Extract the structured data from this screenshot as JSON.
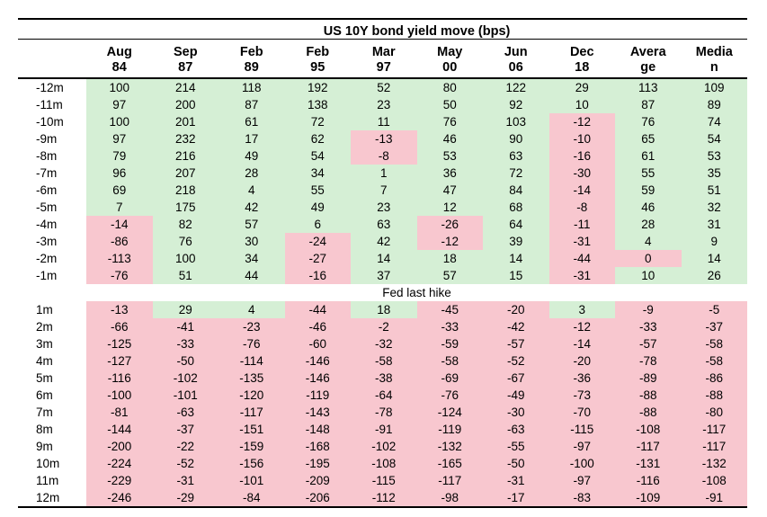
{
  "title": "US 10Y bond yield move (bps)",
  "columns": [
    [
      "Aug",
      "84"
    ],
    [
      "Sep",
      "87"
    ],
    [
      "Feb",
      "89"
    ],
    [
      "Feb",
      "95"
    ],
    [
      "Mar",
      "97"
    ],
    [
      "May",
      "00"
    ],
    [
      "Jun",
      "06"
    ],
    [
      "Dec",
      "18"
    ],
    [
      "Avera",
      "ge"
    ],
    [
      "Media",
      "n"
    ]
  ],
  "separator_label": "Fed last hike",
  "before_hike": [
    {
      "label": "-12m",
      "values": [
        "100",
        "214",
        "118",
        "192",
        "52",
        "80",
        "122",
        "29",
        "113",
        "109"
      ]
    },
    {
      "label": "-11m",
      "values": [
        "97",
        "200",
        "87",
        "138",
        "23",
        "50",
        "92",
        "10",
        "87",
        "89"
      ]
    },
    {
      "label": "-10m",
      "values": [
        "100",
        "201",
        "61",
        "72",
        "11",
        "76",
        "103",
        "-12",
        "76",
        "74"
      ]
    },
    {
      "label": "-9m",
      "values": [
        "97",
        "232",
        "17",
        "62",
        "-13",
        "46",
        "90",
        "-10",
        "65",
        "54"
      ]
    },
    {
      "label": "-8m",
      "values": [
        "79",
        "216",
        "49",
        "54",
        "-8",
        "53",
        "63",
        "-16",
        "61",
        "53"
      ]
    },
    {
      "label": "-7m",
      "values": [
        "96",
        "207",
        "28",
        "34",
        "1",
        "36",
        "72",
        "-30",
        "55",
        "35"
      ]
    },
    {
      "label": "-6m",
      "values": [
        "69",
        "218",
        "4",
        "55",
        "7",
        "47",
        "84",
        "-14",
        "59",
        "51"
      ]
    },
    {
      "label": "-5m",
      "values": [
        "7",
        "175",
        "42",
        "49",
        "23",
        "12",
        "68",
        "-8",
        "46",
        "32"
      ]
    },
    {
      "label": "-4m",
      "values": [
        "-14",
        "82",
        "57",
        "6",
        "63",
        "-26",
        "64",
        "-11",
        "28",
        "31"
      ]
    },
    {
      "label": "-3m",
      "values": [
        "-86",
        "76",
        "30",
        "-24",
        "42",
        "-12",
        "39",
        "-31",
        "4",
        "9"
      ]
    },
    {
      "label": "-2m",
      "values": [
        "-113",
        "100",
        "34",
        "-27",
        "14",
        "18",
        "14",
        "-44",
        "0",
        "14"
      ]
    },
    {
      "label": "-1m",
      "values": [
        "-76",
        "51",
        "44",
        "-16",
        "37",
        "57",
        "15",
        "-31",
        "10",
        "26"
      ]
    }
  ],
  "after_hike": [
    {
      "label": "1m",
      "values": [
        "-13",
        "29",
        "4",
        "-44",
        "18",
        "-45",
        "-20",
        "3",
        "-9",
        "-5"
      ]
    },
    {
      "label": "2m",
      "values": [
        "-66",
        "-41",
        "-23",
        "-46",
        "-2",
        "-33",
        "-42",
        "-12",
        "-33",
        "-37"
      ]
    },
    {
      "label": "3m",
      "values": [
        "-125",
        "-33",
        "-76",
        "-60",
        "-32",
        "-59",
        "-57",
        "-14",
        "-57",
        "-58"
      ]
    },
    {
      "label": "4m",
      "values": [
        "-127",
        "-50",
        "-114",
        "-146",
        "-58",
        "-58",
        "-52",
        "-20",
        "-78",
        "-58"
      ]
    },
    {
      "label": "5m",
      "values": [
        "-116",
        "-102",
        "-135",
        "-146",
        "-38",
        "-69",
        "-67",
        "-36",
        "-89",
        "-86"
      ]
    },
    {
      "label": "6m",
      "values": [
        "-100",
        "-101",
        "-120",
        "-119",
        "-64",
        "-76",
        "-49",
        "-73",
        "-88",
        "-88"
      ]
    },
    {
      "label": "7m",
      "values": [
        "-81",
        "-63",
        "-117",
        "-143",
        "-78",
        "-124",
        "-30",
        "-70",
        "-88",
        "-80"
      ]
    },
    {
      "label": "8m",
      "values": [
        "-144",
        "-37",
        "-151",
        "-148",
        "-91",
        "-119",
        "-63",
        "-115",
        "-108",
        "-117"
      ]
    },
    {
      "label": "9m",
      "values": [
        "-200",
        "-22",
        "-159",
        "-168",
        "-102",
        "-132",
        "-55",
        "-97",
        "-117",
        "-117"
      ]
    },
    {
      "label": "10m",
      "values": [
        "-224",
        "-52",
        "-156",
        "-195",
        "-108",
        "-165",
        "-50",
        "-100",
        "-131",
        "-132"
      ]
    },
    {
      "label": "11m",
      "values": [
        "-229",
        "-31",
        "-101",
        "-209",
        "-115",
        "-117",
        "-31",
        "-97",
        "-116",
        "-108"
      ]
    },
    {
      "label": "12m",
      "values": [
        "-246",
        "-29",
        "-84",
        "-206",
        "-112",
        "-98",
        "-17",
        "-83",
        "-109",
        "-91"
      ]
    }
  ],
  "colors": {
    "positive": "#d5efd5",
    "negative": "#f8c7cf"
  }
}
